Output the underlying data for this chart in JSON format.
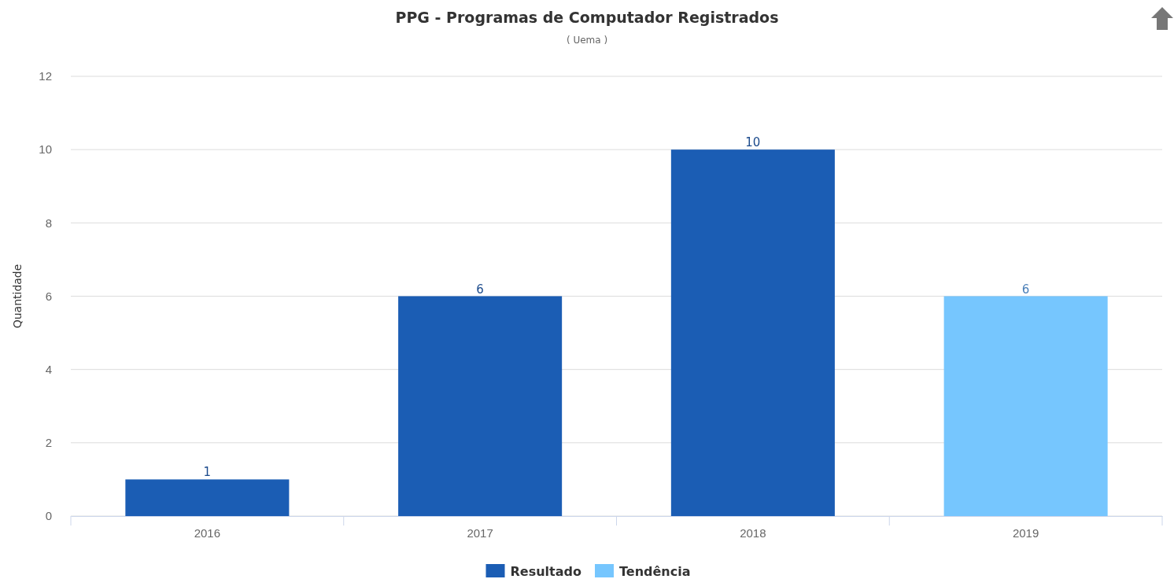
{
  "chart_data": {
    "type": "bar",
    "title": "PPG - Programas de Computador Registrados",
    "subtitle": "( Uema )",
    "ylabel": "Quantidade",
    "categories": [
      "2016",
      "2017",
      "2018",
      "2019"
    ],
    "series": [
      {
        "name": "Resultado",
        "color": "#1b5db4",
        "values": [
          1,
          6,
          10,
          null
        ]
      },
      {
        "name": "Tendência",
        "color": "#76c6fe",
        "values": [
          null,
          null,
          null,
          6
        ]
      }
    ],
    "ylim": [
      0,
      12
    ],
    "yticks": [
      0,
      2,
      4,
      6,
      8,
      10,
      12
    ],
    "grid": "y",
    "legend": "bottom",
    "data_labels": true
  }
}
